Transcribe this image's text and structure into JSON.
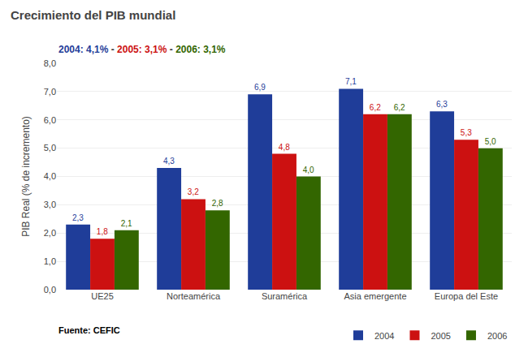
{
  "chart_data": {
    "type": "bar",
    "title": "Crecimiento del PIB mundial",
    "subtitle": "2004: 4,1% - 2005: 3,1% - 2006: 3,1%",
    "annotations": [
      "Fuente: CEFIC"
    ],
    "categories": [
      "UE25",
      "Norteamérica",
      "Suramérica",
      "Asia emergente",
      "Europa del Este"
    ],
    "series": [
      {
        "name": "2004",
        "color": "#1F3D99",
        "values": [
          2.3,
          4.3,
          6.9,
          7.1,
          6.3
        ],
        "value_labels": [
          "2,3",
          "4,3",
          "6,9",
          "7,1",
          "6,3"
        ]
      },
      {
        "name": "2005",
        "color": "#CC1111",
        "values": [
          1.8,
          3.2,
          4.8,
          6.2,
          5.3
        ],
        "value_labels": [
          "1,8",
          "3,2",
          "4,8",
          "6,2",
          "5,3"
        ]
      },
      {
        "name": "2006",
        "color": "#336600",
        "values": [
          2.1,
          2.8,
          4.0,
          6.2,
          5.0
        ],
        "value_labels": [
          "2,1",
          "2,8",
          "4,0",
          "6,2",
          "5,0"
        ]
      }
    ],
    "ylabel": "PIB Real (% de incremento)",
    "ylim": [
      0.0,
      8.0
    ],
    "yticks": [
      {
        "value": 0.0,
        "label": "0,0"
      },
      {
        "value": 1.0,
        "label": "1,0"
      },
      {
        "value": 2.0,
        "label": "2,0"
      },
      {
        "value": 3.0,
        "label": "3,0"
      },
      {
        "value": 4.0,
        "label": "4,0"
      },
      {
        "value": 5.0,
        "label": "5,0"
      },
      {
        "value": 6.0,
        "label": "6,0"
      },
      {
        "value": 7.0,
        "label": "7,0"
      },
      {
        "value": 8.0,
        "label": "8,0"
      }
    ],
    "grid": true,
    "legend": "lower right",
    "data_labels": true
  }
}
